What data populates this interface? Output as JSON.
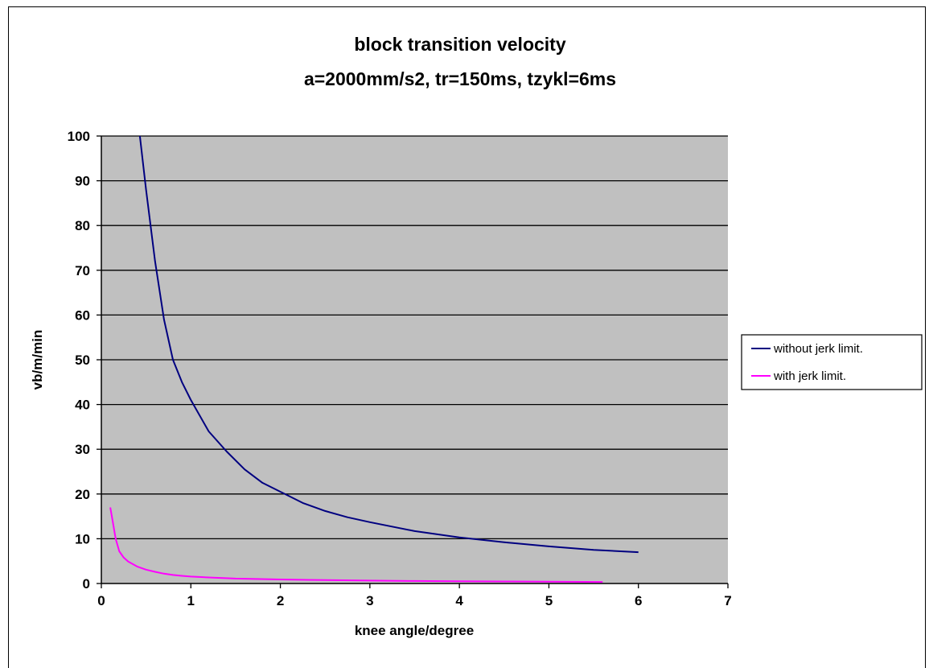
{
  "chart_data": {
    "type": "line",
    "title": "block transition velocity",
    "subtitle": "a=2000mm/s2, tr=150ms, tzykl=6ms",
    "xlabel": "knee angle/degree",
    "ylabel": "vb/m/min",
    "xlim": [
      0,
      7
    ],
    "ylim": [
      0,
      100
    ],
    "xticks": [
      "0",
      "1",
      "2",
      "3",
      "4",
      "5",
      "6",
      "7"
    ],
    "yticks": [
      "0",
      "10",
      "20",
      "30",
      "40",
      "50",
      "60",
      "70",
      "80",
      "90",
      "100"
    ],
    "grid": "horizontal",
    "legend_position": "right",
    "plot_background": "#c0c0c0",
    "series": [
      {
        "name": "without jerk limit.",
        "color": "#000080",
        "x": [
          0.43,
          0.5,
          0.6,
          0.7,
          0.8,
          0.9,
          1.0,
          1.2,
          1.4,
          1.6,
          1.8,
          2.0,
          2.25,
          2.5,
          2.75,
          3.0,
          3.5,
          4.0,
          4.5,
          5.0,
          5.5,
          6.0
        ],
        "y": [
          100,
          88,
          72,
          59,
          50,
          45,
          41,
          34,
          29.5,
          25.5,
          22.5,
          20.5,
          18,
          16.2,
          14.8,
          13.7,
          11.7,
          10.3,
          9.2,
          8.3,
          7.5,
          7.0
        ]
      },
      {
        "name": "with jerk limit.",
        "color": "#ff00ff",
        "x": [
          0.1,
          0.13,
          0.16,
          0.2,
          0.25,
          0.3,
          0.4,
          0.5,
          0.6,
          0.7,
          0.8,
          0.9,
          1.0,
          1.2,
          1.5,
          2.0,
          2.5,
          3.0,
          3.5,
          4.0,
          4.5,
          5.0,
          5.6
        ],
        "y": [
          17,
          13.5,
          10,
          7.2,
          5.8,
          4.9,
          3.8,
          3.1,
          2.6,
          2.2,
          1.9,
          1.7,
          1.55,
          1.35,
          1.1,
          0.9,
          0.75,
          0.65,
          0.55,
          0.5,
          0.45,
          0.4,
          0.35
        ]
      }
    ]
  }
}
